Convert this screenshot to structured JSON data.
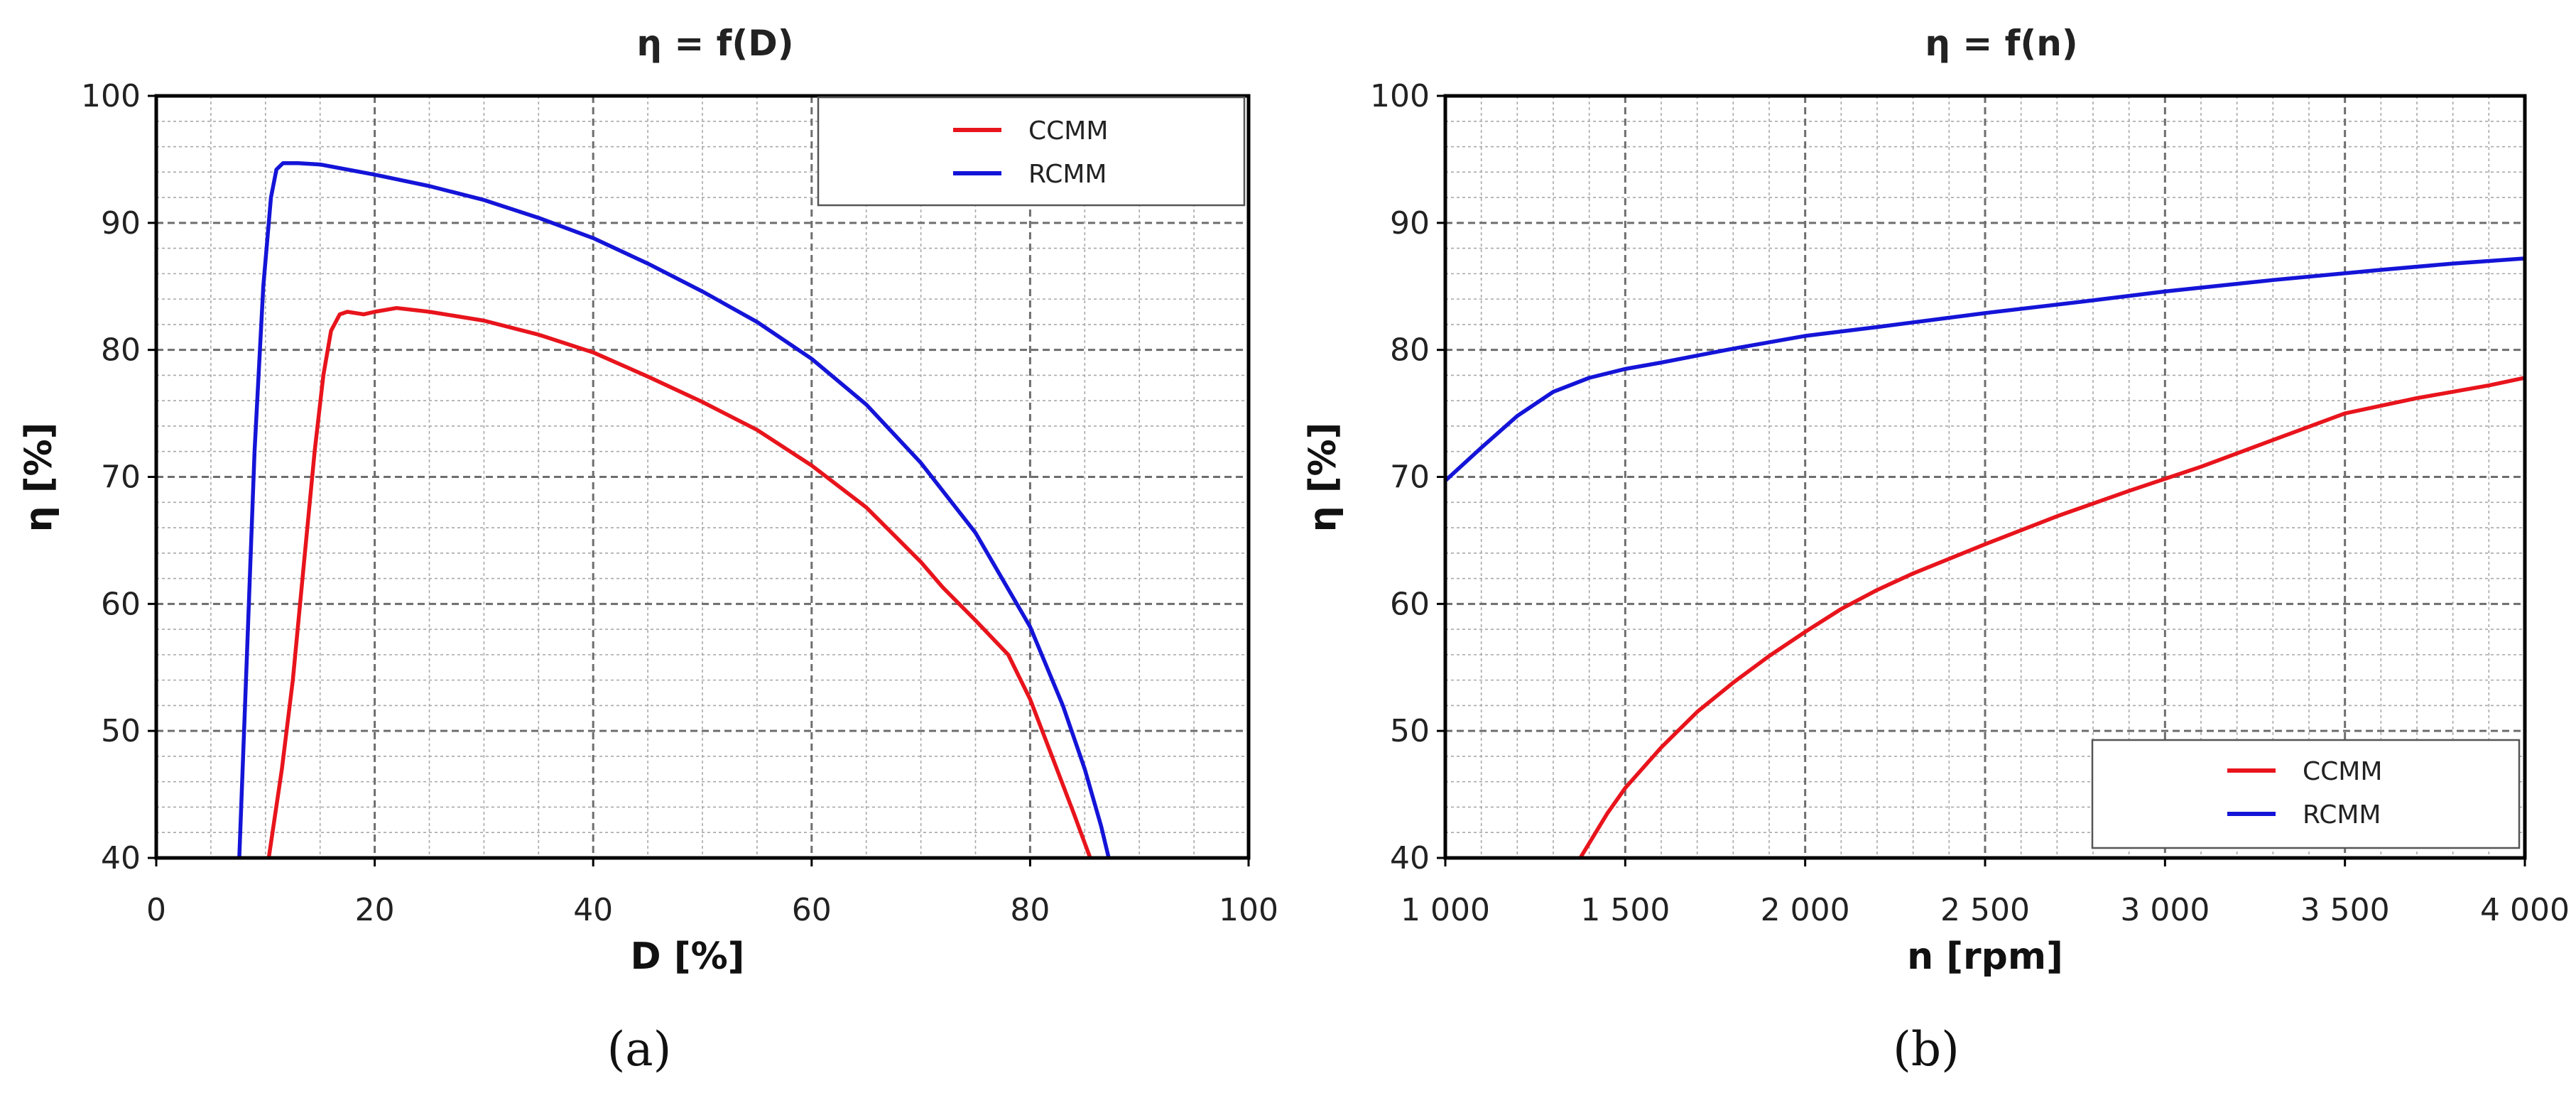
{
  "colors": {
    "ccmm": "#e8141c",
    "rcmm": "#1414d8"
  },
  "chart_data": [
    {
      "id": "a",
      "type": "line",
      "title": "η = f(D)",
      "xlabel": "D [%]",
      "ylabel": "η [%]",
      "xlim": [
        0,
        100
      ],
      "ylim": [
        40,
        100
      ],
      "xticks": [
        0,
        20,
        40,
        60,
        80,
        100
      ],
      "xtick_labels": [
        "0",
        "20",
        "40",
        "60",
        "80",
        "100"
      ],
      "yticks": [
        40,
        50,
        60,
        70,
        80,
        90,
        100
      ],
      "ytick_labels": [
        "40",
        "50",
        "60",
        "70",
        "80",
        "90",
        "100"
      ],
      "grid": true,
      "legend_position": "top-right",
      "panel_label": "(a)",
      "series": [
        {
          "name": "CCMM",
          "color": "#e8141c",
          "x": [
            10.3,
            11.5,
            12.5,
            13.5,
            14.5,
            15.3,
            16.0,
            16.8,
            17.5,
            19,
            20,
            22,
            25,
            30,
            35,
            40,
            45,
            50,
            55,
            60,
            65,
            70,
            72,
            75,
            78,
            80,
            82,
            84,
            85.5
          ],
          "y": [
            40,
            47,
            54,
            63,
            72,
            78,
            81.5,
            82.8,
            83,
            82.8,
            83,
            83.3,
            83,
            82.3,
            81.2,
            79.8,
            77.9,
            75.9,
            73.7,
            70.9,
            67.6,
            63.3,
            61.3,
            58.7,
            56.0,
            52.5,
            48.0,
            43.5,
            40
          ]
        },
        {
          "name": "RCMM",
          "color": "#1414d8",
          "x": [
            7.6,
            8.3,
            9.0,
            9.8,
            10.5,
            11.0,
            11.6,
            12.3,
            13,
            15,
            20,
            25,
            30,
            35,
            40,
            45,
            50,
            55,
            60,
            65,
            70,
            75,
            80,
            83,
            85,
            86.5,
            87.2
          ],
          "y": [
            40,
            56,
            72,
            85,
            92,
            94.2,
            94.7,
            94.7,
            94.7,
            94.6,
            93.8,
            92.9,
            91.8,
            90.4,
            88.8,
            86.8,
            84.6,
            82.2,
            79.3,
            75.7,
            71.1,
            65.6,
            58.2,
            52.0,
            47.0,
            42.5,
            40
          ]
        }
      ]
    },
    {
      "id": "b",
      "type": "line",
      "title": "η = f(n)",
      "xlabel": "n [rpm]",
      "ylabel": "η [%]",
      "xlim": [
        1000,
        4000
      ],
      "ylim": [
        40,
        100
      ],
      "xticks": [
        1000,
        1500,
        2000,
        2500,
        3000,
        3500,
        4000
      ],
      "xtick_labels": [
        "1 000",
        "1 500",
        "2 000",
        "2 500",
        "3 000",
        "3 500",
        "4 000"
      ],
      "yticks": [
        40,
        50,
        60,
        70,
        80,
        90,
        100
      ],
      "ytick_labels": [
        "40",
        "50",
        "60",
        "70",
        "80",
        "90",
        "100"
      ],
      "grid": true,
      "legend_position": "bottom-right",
      "panel_label": "(b)",
      "series": [
        {
          "name": "CCMM",
          "color": "#e8141c",
          "x": [
            1375,
            1450,
            1500,
            1600,
            1700,
            1800,
            1900,
            2000,
            2100,
            2200,
            2300,
            2500,
            2700,
            2900,
            3100,
            3300,
            3500,
            3700,
            3900,
            4000
          ],
          "y": [
            40,
            43.5,
            45.5,
            48.7,
            51.5,
            53.8,
            55.9,
            57.8,
            59.6,
            61.1,
            62.4,
            64.7,
            66.9,
            68.9,
            70.8,
            72.9,
            75.0,
            76.2,
            77.2,
            77.8
          ]
        },
        {
          "name": "RCMM",
          "color": "#1414d8",
          "x": [
            1000,
            1100,
            1200,
            1300,
            1400,
            1500,
            1600,
            1800,
            2000,
            2200,
            2500,
            2800,
            3000,
            3300,
            3600,
            3800,
            4000
          ],
          "y": [
            69.7,
            72.3,
            74.8,
            76.7,
            77.8,
            78.5,
            79.0,
            80.1,
            81.1,
            81.8,
            82.9,
            83.9,
            84.6,
            85.5,
            86.3,
            86.8,
            87.2
          ]
        }
      ]
    }
  ]
}
